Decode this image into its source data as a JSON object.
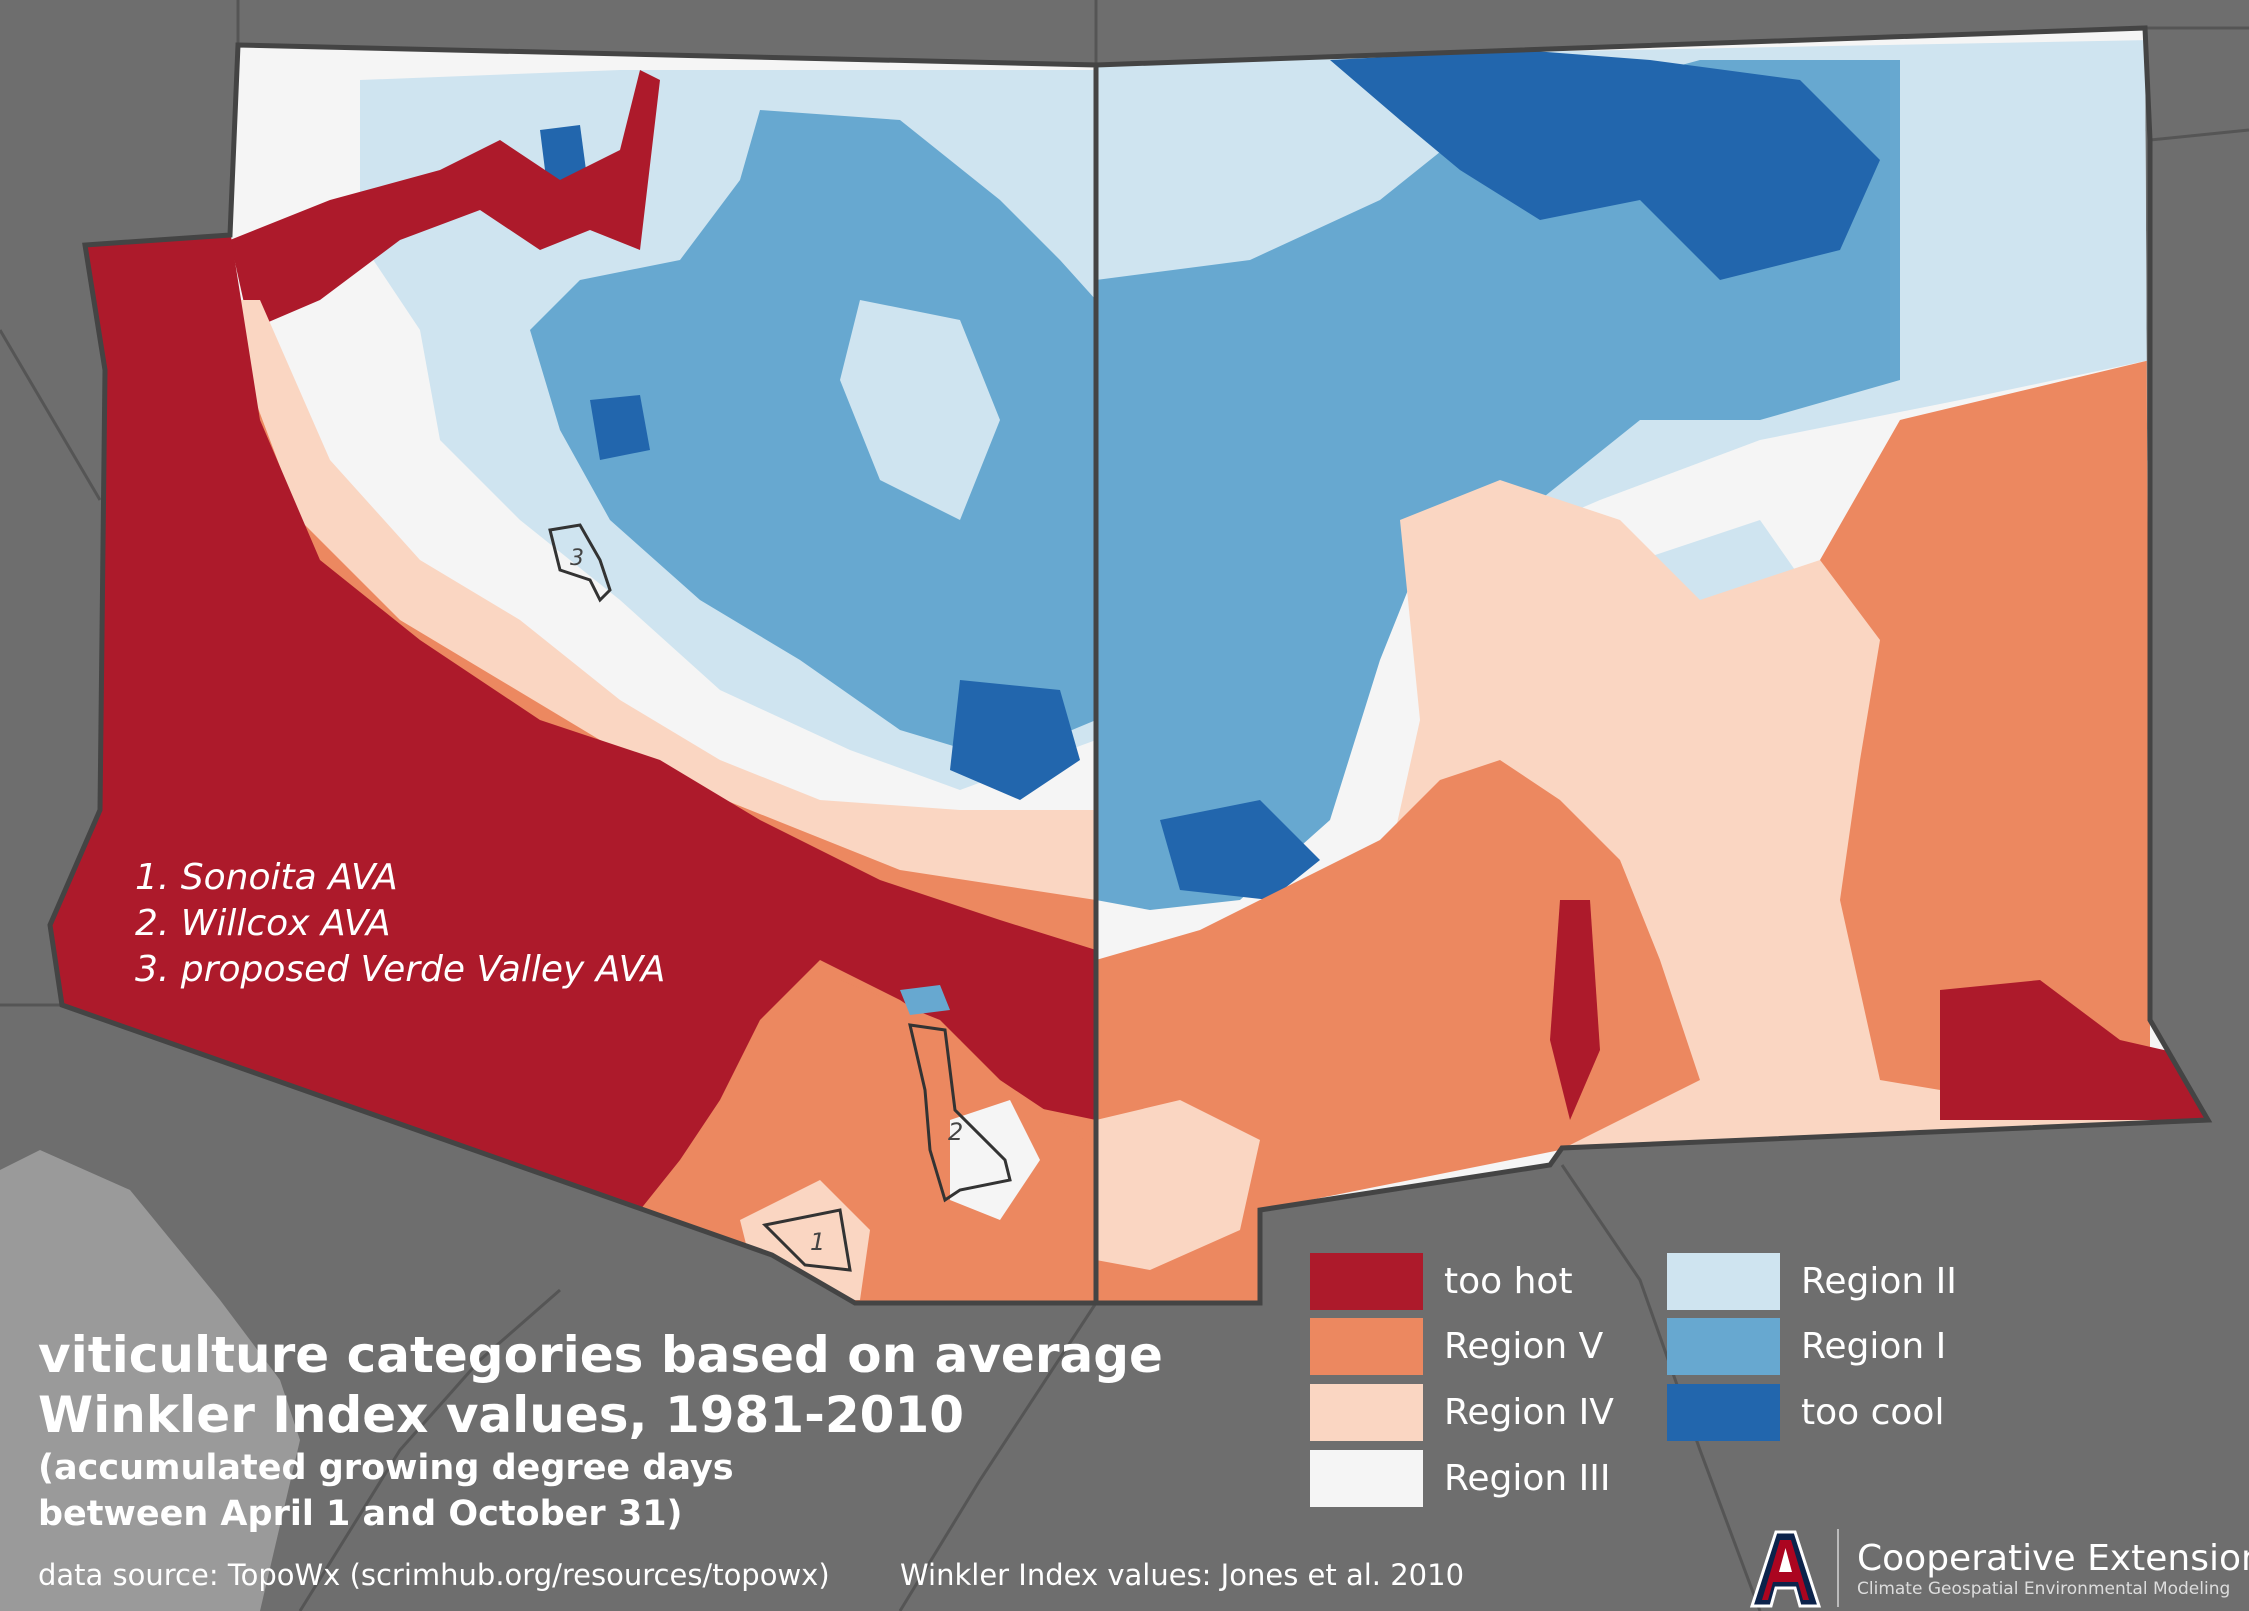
{
  "title": {
    "line1": "viticulture categories based on average",
    "line2": "Winkler Index values, 1981-2010",
    "sub1": "(accumulated growing degree days",
    "sub2": "between April 1 and October 31)"
  },
  "sources": {
    "data_source": "data source: TopoWx (scrimhub.org/resources/topowx)",
    "winkler_source": "Winkler Index values: Jones et al. 2010"
  },
  "ava_list": [
    "1. Sonoita AVA",
    "2. Willcox AVA",
    "3. proposed Verde Valley AVA"
  ],
  "ava_labels": [
    "1",
    "2",
    "3"
  ],
  "legend": {
    "items": [
      {
        "label": "too hot",
        "color": "#ad1a2b"
      },
      {
        "label": "Region V",
        "color": "#ec8860"
      },
      {
        "label": "Region IV",
        "color": "#fad6c2"
      },
      {
        "label": "Region III",
        "color": "#f5f5f5"
      },
      {
        "label": "Region II",
        "color": "#cfe4f0"
      },
      {
        "label": "Region I",
        "color": "#67a8d0"
      },
      {
        "label": "too cool",
        "color": "#2266ad"
      }
    ]
  },
  "logo": {
    "title": "Cooperative Extension",
    "subtitle": "Climate Geospatial Environmental Modeling",
    "mark": "university-a-logo"
  },
  "colors": {
    "background": "#6e6e6e",
    "light_land": "#9a9a9a",
    "border": "#444444"
  }
}
